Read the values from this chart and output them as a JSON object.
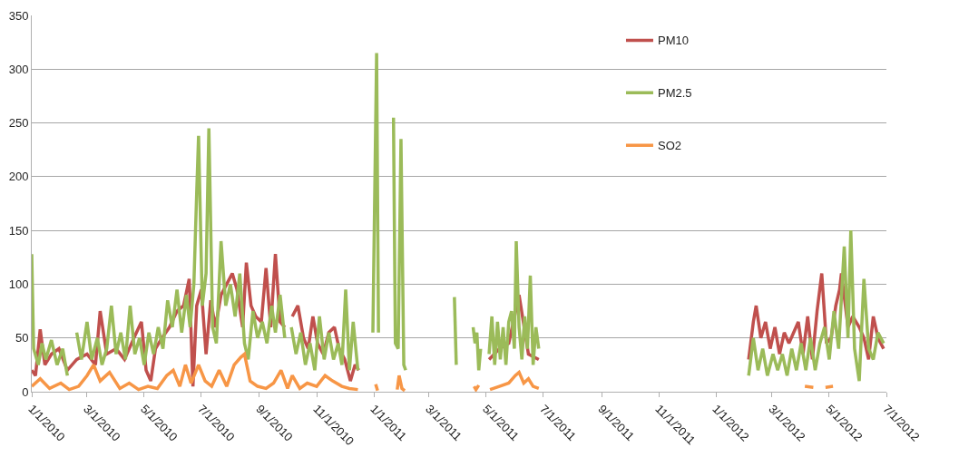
{
  "chart_data": {
    "type": "line",
    "legend": "top right",
    "grid": "y",
    "marker": "none",
    "line_style": "solid",
    "ylim": [
      0,
      350
    ],
    "yticks": [
      0,
      50,
      100,
      150,
      200,
      250,
      300,
      350
    ],
    "xlim": [
      "2010-01-01",
      "2012-07-01"
    ],
    "xticks": [
      {
        "value": "2010-01-01",
        "label": "1/1/2010"
      },
      {
        "value": "2010-03-01",
        "label": "3/1/2010"
      },
      {
        "value": "2010-05-01",
        "label": "5/1/2010"
      },
      {
        "value": "2010-07-01",
        "label": "7/1/2010"
      },
      {
        "value": "2010-09-01",
        "label": "9/1/2010"
      },
      {
        "value": "2010-11-01",
        "label": "11/1/2010"
      },
      {
        "value": "2011-01-01",
        "label": "1/1/2011"
      },
      {
        "value": "2011-03-01",
        "label": "3/1/2011"
      },
      {
        "value": "2011-05-01",
        "label": "5/1/2011"
      },
      {
        "value": "2011-07-01",
        "label": "7/1/2011"
      },
      {
        "value": "2011-09-01",
        "label": "9/1/2011"
      },
      {
        "value": "2011-11-01",
        "label": "11/1/2011"
      },
      {
        "value": "2012-01-01",
        "label": "1/1/2012"
      },
      {
        "value": "2012-03-01",
        "label": "3/1/2012"
      },
      {
        "value": "2012-05-01",
        "label": "5/1/2012"
      },
      {
        "value": "2012-07-01",
        "label": "7/1/2012"
      }
    ],
    "series": [
      {
        "name": "PM10",
        "color": "#c0504d",
        "x": [
          "2010-01-01",
          "2010-01-05",
          "2010-01-10",
          "2010-01-15",
          "2010-01-22",
          "2010-01-30",
          "2010-02-08",
          "2010-02-18",
          "2010-03-01",
          "2010-03-10",
          "2010-03-15",
          "2010-03-22",
          "2010-04-01",
          "2010-04-10",
          "2010-04-20",
          "2010-04-28",
          "2010-05-03",
          "2010-05-08",
          "2010-05-13",
          "2010-05-20",
          "2010-05-28",
          "2010-06-05",
          "2010-06-12",
          "2010-06-18",
          "2010-06-22",
          "2010-06-26",
          "2010-07-01",
          "2010-07-06",
          "2010-07-11",
          "2010-07-16",
          "2010-07-22",
          "2010-07-28",
          "2010-08-03",
          "2010-08-08",
          "2010-08-14",
          "2010-08-18",
          "2010-08-23",
          "2010-08-28",
          "2010-09-03",
          "2010-09-08",
          "2010-09-13",
          "2010-09-18",
          "2010-09-23",
          "2010-09-28",
          "2010-10-03",
          "2010-10-06",
          "2010-10-12",
          "2010-10-18",
          "2010-10-23",
          "2010-10-28",
          "2010-11-02",
          "2010-11-08",
          "2010-11-14",
          "2010-11-20",
          "2010-11-25",
          "2010-12-01",
          "2010-12-07",
          "2010-12-12",
          "2010-12-16",
          "2011-01-01",
          "2011-05-04",
          "2011-05-15",
          "2011-05-25",
          "2011-06-05",
          "2011-06-15",
          "2011-06-26",
          "2012-01-01",
          "2012-02-05",
          "2012-02-10",
          "2012-02-13",
          "2012-02-18",
          "2012-02-23",
          "2012-02-28",
          "2012-03-04",
          "2012-03-09",
          "2012-03-14",
          "2012-03-19",
          "2012-03-24",
          "2012-03-29",
          "2012-04-03",
          "2012-04-08",
          "2012-04-13",
          "2012-04-18",
          "2012-04-23",
          "2012-04-28",
          "2012-05-03",
          "2012-05-08",
          "2012-05-12",
          "2012-05-14",
          "2012-05-21",
          "2012-05-26",
          "2012-06-02",
          "2012-06-07",
          "2012-06-12",
          "2012-06-17",
          "2012-06-22",
          "2012-06-28"
        ],
        "values": [
          20,
          15,
          58,
          25,
          35,
          40,
          20,
          30,
          35,
          25,
          75,
          35,
          40,
          30,
          50,
          65,
          20,
          10,
          40,
          50,
          60,
          75,
          80,
          105,
          5,
          80,
          95,
          35,
          85,
          60,
          90,
          100,
          110,
          95,
          60,
          120,
          80,
          70,
          65,
          115,
          60,
          128,
          65,
          60,
          null,
          70,
          80,
          50,
          40,
          70,
          45,
          35,
          55,
          60,
          40,
          30,
          10,
          25,
          20,
          null,
          30,
          40,
          45,
          90,
          35,
          30,
          null,
          30,
          65,
          80,
          50,
          65,
          40,
          60,
          35,
          55,
          45,
          55,
          65,
          35,
          70,
          30,
          75,
          110,
          45,
          50,
          80,
          95,
          110,
          60,
          70,
          60,
          50,
          30,
          70,
          50,
          40
        ]
      },
      {
        "name": "PM2.5",
        "color": "#9bbb59",
        "x": [
          "2010-01-01",
          "2010-01-03",
          "2010-01-08",
          "2010-01-12",
          "2010-01-16",
          "2010-01-22",
          "2010-01-28",
          "2010-02-03",
          "2010-02-08",
          "2010-02-12",
          "2010-02-18",
          "2010-02-23",
          "2010-03-01",
          "2010-03-06",
          "2010-03-12",
          "2010-03-17",
          "2010-03-22",
          "2010-03-27",
          "2010-04-01",
          "2010-04-06",
          "2010-04-11",
          "2010-04-16",
          "2010-04-21",
          "2010-04-26",
          "2010-05-01",
          "2010-05-06",
          "2010-05-11",
          "2010-05-16",
          "2010-05-21",
          "2010-05-26",
          "2010-05-31",
          "2010-06-05",
          "2010-06-10",
          "2010-06-15",
          "2010-06-19",
          "2010-06-23",
          "2010-06-26",
          "2010-06-28",
          "2010-07-02",
          "2010-07-06",
          "2010-07-09",
          "2010-07-13",
          "2010-07-17",
          "2010-07-22",
          "2010-07-27",
          "2010-08-01",
          "2010-08-06",
          "2010-08-11",
          "2010-08-16",
          "2010-08-20",
          "2010-08-25",
          "2010-08-30",
          "2010-09-04",
          "2010-09-09",
          "2010-09-14",
          "2010-09-18",
          "2010-09-23",
          "2010-09-28",
          "2010-10-01",
          "2010-10-05",
          "2010-10-10",
          "2010-10-15",
          "2010-10-20",
          "2010-10-25",
          "2010-10-30",
          "2010-11-04",
          "2010-11-09",
          "2010-11-14",
          "2010-11-19",
          "2010-11-24",
          "2010-11-28",
          "2010-12-02",
          "2010-12-06",
          "2010-12-10",
          "2010-12-15",
          "2010-12-25",
          "2010-12-31",
          "2011-01-04",
          "2011-01-06",
          "2011-01-14",
          "2011-01-22",
          "2011-01-24",
          "2011-01-27",
          "2011-01-30",
          "2011-02-02",
          "2011-02-04",
          "2011-03-15",
          "2011-03-28",
          "2011-03-30",
          "2011-04-08",
          "2011-04-17",
          "2011-04-19",
          "2011-04-21",
          "2011-04-23",
          "2011-04-25",
          "2011-04-30",
          "2011-05-04",
          "2011-05-07",
          "2011-05-10",
          "2011-05-13",
          "2011-05-16",
          "2011-05-19",
          "2011-05-22",
          "2011-05-25",
          "2011-05-28",
          "2011-05-31",
          "2011-06-02",
          "2011-06-05",
          "2011-06-08",
          "2011-06-11",
          "2011-06-14",
          "2011-06-17",
          "2011-06-20",
          "2011-06-23",
          "2011-06-26",
          "2012-01-01",
          "2012-02-05",
          "2012-02-10",
          "2012-02-15",
          "2012-02-20",
          "2012-02-25",
          "2012-03-02",
          "2012-03-07",
          "2012-03-12",
          "2012-03-17",
          "2012-03-22",
          "2012-03-27",
          "2012-04-01",
          "2012-04-06",
          "2012-04-11",
          "2012-04-16",
          "2012-04-21",
          "2012-04-26",
          "2012-05-01",
          "2012-05-06",
          "2012-05-11",
          "2012-05-17",
          "2012-05-21",
          "2012-05-24",
          "2012-05-28",
          "2012-06-02",
          "2012-06-07",
          "2012-06-12",
          "2012-06-17",
          "2012-06-22",
          "2012-06-28"
        ],
        "values": [
          128,
          40,
          25,
          45,
          30,
          48,
          25,
          40,
          15,
          null,
          55,
          30,
          65,
          30,
          50,
          25,
          40,
          80,
          35,
          55,
          30,
          80,
          35,
          50,
          25,
          55,
          35,
          60,
          40,
          85,
          60,
          95,
          55,
          90,
          60,
          100,
          185,
          238,
          80,
          110,
          245,
          60,
          45,
          140,
          80,
          100,
          70,
          110,
          45,
          30,
          75,
          50,
          65,
          45,
          80,
          55,
          90,
          50,
          null,
          60,
          35,
          55,
          25,
          45,
          20,
          70,
          30,
          55,
          30,
          45,
          25,
          95,
          20,
          65,
          20,
          null,
          55,
          315,
          55,
          null,
          255,
          45,
          40,
          235,
          25,
          20,
          null,
          88,
          25,
          null,
          60,
          45,
          55,
          20,
          40,
          null,
          35,
          70,
          25,
          65,
          30,
          60,
          25,
          65,
          75,
          40,
          140,
          60,
          30,
          70,
          40,
          108,
          25,
          60,
          40,
          null,
          15,
          50,
          20,
          40,
          15,
          35,
          20,
          35,
          15,
          40,
          20,
          45,
          20,
          50,
          20,
          45,
          60,
          30,
          75,
          40,
          135,
          50,
          150,
          40,
          10,
          105,
          40,
          30,
          55,
          45
        ]
      },
      {
        "name": "SO2",
        "color": "#f79646",
        "x": [
          "2010-01-01",
          "2010-01-10",
          "2010-01-20",
          "2010-02-01",
          "2010-02-10",
          "2010-02-20",
          "2010-03-01",
          "2010-03-08",
          "2010-03-15",
          "2010-03-25",
          "2010-04-05",
          "2010-04-15",
          "2010-04-25",
          "2010-05-05",
          "2010-05-15",
          "2010-05-25",
          "2010-06-01",
          "2010-06-08",
          "2010-06-14",
          "2010-06-20",
          "2010-06-28",
          "2010-07-05",
          "2010-07-12",
          "2010-07-20",
          "2010-07-28",
          "2010-08-05",
          "2010-08-12",
          "2010-08-16",
          "2010-08-22",
          "2010-08-30",
          "2010-09-08",
          "2010-09-16",
          "2010-09-24",
          "2010-10-01",
          "2010-10-06",
          "2010-10-14",
          "2010-10-22",
          "2010-11-01",
          "2010-11-10",
          "2010-11-18",
          "2010-11-28",
          "2010-12-06",
          "2010-12-15",
          "2010-12-25",
          "2011-01-03",
          "2011-01-05",
          "2011-01-15",
          "2011-01-26",
          "2011-01-28",
          "2011-01-31",
          "2011-02-03",
          "2011-03-15",
          "2011-04-18",
          "2011-04-20",
          "2011-04-23",
          "2011-04-30",
          "2011-05-05",
          "2011-05-15",
          "2011-05-25",
          "2011-06-01",
          "2011-06-05",
          "2011-06-10",
          "2011-06-15",
          "2011-06-20",
          "2011-06-26",
          "2012-01-01",
          "2012-04-05",
          "2012-04-14",
          "2012-04-20",
          "2012-04-27",
          "2012-05-05"
        ],
        "values": [
          5,
          12,
          3,
          8,
          2,
          5,
          15,
          25,
          10,
          18,
          3,
          8,
          2,
          5,
          3,
          15,
          20,
          5,
          25,
          8,
          25,
          10,
          5,
          20,
          5,
          25,
          32,
          35,
          10,
          5,
          3,
          8,
          20,
          3,
          15,
          3,
          8,
          5,
          15,
          10,
          5,
          3,
          2,
          null,
          7,
          1,
          null,
          2,
          15,
          3,
          1,
          null,
          5,
          2,
          6,
          null,
          2,
          5,
          8,
          15,
          18,
          8,
          12,
          5,
          3,
          null,
          5,
          4,
          null,
          4,
          5
        ]
      }
    ]
  }
}
